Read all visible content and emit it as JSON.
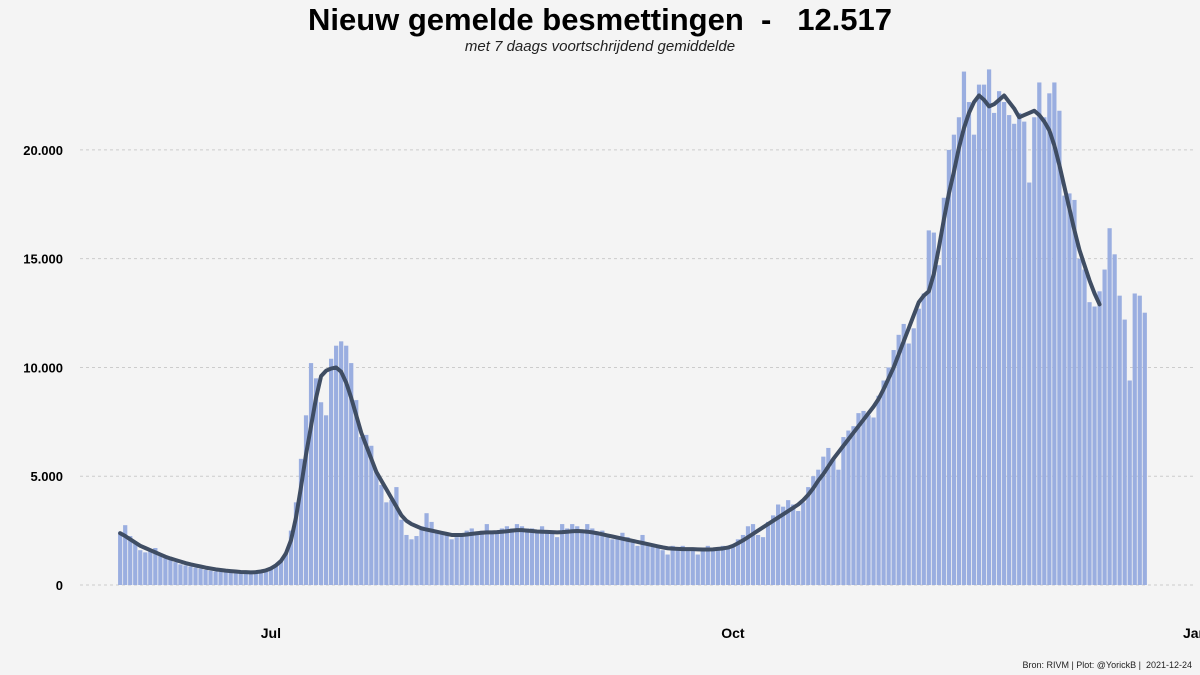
{
  "title": "Nieuw gemelde besmettingen",
  "title_separator": "-",
  "latest_value": "12.517",
  "subtitle": "met 7 daags voortschrijdend gemiddelde",
  "caption": "Bron: RIVM | Plot: @YorickB |  2021-12-24",
  "colors": {
    "background": "#f4f4f4",
    "bars": "#9aaee0",
    "line": "#3f4d63",
    "grid": "#cccccc",
    "text": "#000000"
  },
  "chart_data": {
    "type": "bar",
    "x_start": "2021-06-01",
    "x_end": "2021-12-23",
    "xlim": [
      "2021-05-24",
      "2022-01-01"
    ],
    "ylim": [
      0,
      24500
    ],
    "y_ticks": [
      0,
      5000,
      10000,
      15000,
      20000
    ],
    "y_tick_labels": [
      "0",
      "5.000",
      "10.000",
      "15.000",
      "20.000"
    ],
    "x_ticks": [
      "2021-07-01",
      "2021-10-01",
      "2022-01-01"
    ],
    "x_tick_labels": [
      "Jul",
      "Oct",
      "Jan"
    ],
    "grid": "horizontal dashed",
    "series": [
      {
        "type": "bar",
        "values": [
          2450,
          2750,
          2250,
          1900,
          1600,
          1500,
          1600,
          1700,
          1350,
          1250,
          1150,
          1050,
          950,
          900,
          850,
          800,
          750,
          700,
          650,
          620,
          600,
          580,
          560,
          540,
          520,
          530,
          560,
          600,
          650,
          700,
          800,
          950,
          1150,
          1500,
          2500,
          3800,
          5800,
          7800,
          10200,
          9500,
          8400,
          7800,
          10400,
          11000,
          11200,
          11000,
          10200,
          8500,
          6800,
          6900,
          6400,
          5200,
          4600,
          3800,
          3900,
          4500,
          3000,
          2300,
          2100,
          2250,
          2700,
          3300,
          2900,
          2500,
          2400,
          2300,
          2100,
          2200,
          2300,
          2500,
          2600,
          2400,
          2500,
          2800,
          2400,
          2500,
          2600,
          2700,
          2600,
          2800,
          2700,
          2600,
          2600,
          2500,
          2700,
          2500,
          2400,
          2200,
          2800,
          2600,
          2800,
          2700,
          2500,
          2800,
          2600,
          2300,
          2500,
          2200,
          2100,
          2200,
          2400,
          2200,
          2000,
          1800,
          2300,
          1950,
          1900,
          1700,
          1600,
          1400,
          1800,
          1700,
          1800,
          1700,
          1600,
          1400,
          1700,
          1800,
          1700,
          1600,
          1800,
          1700,
          1800,
          2100,
          2300,
          2700,
          2800,
          2300,
          2200,
          2900,
          3200,
          3700,
          3600,
          3900,
          3700,
          3400,
          3800,
          4500,
          5000,
          5300,
          5900,
          6300,
          5800,
          5300,
          6800,
          7100,
          7300,
          7900,
          8000,
          7800,
          7700,
          8700,
          9400,
          10000,
          10800,
          11500,
          12000,
          11100,
          11800,
          12700,
          13400,
          16300,
          16200,
          14700,
          17800,
          20000,
          20700,
          21500,
          23600,
          22200,
          20700,
          23000,
          23000,
          23700,
          21700,
          22700,
          22200,
          21600,
          21200,
          21700,
          21300,
          18500,
          21500,
          23100,
          21500,
          22600,
          23100,
          21800,
          17900,
          18000,
          17700,
          15000,
          14500,
          13000,
          12800,
          13500,
          14500,
          16400,
          15200,
          13300,
          12200,
          9400,
          13400,
          13300,
          12517
        ]
      },
      {
        "type": "line",
        "name": "7 daags voortschrijdend gemiddelde",
        "values": [
          2380,
          2250,
          2100,
          1950,
          1800,
          1700,
          1600,
          1500,
          1400,
          1300,
          1220,
          1150,
          1080,
          1010,
          950,
          900,
          850,
          800,
          760,
          720,
          690,
          660,
          640,
          620,
          600,
          590,
          580,
          590,
          620,
          670,
          760,
          900,
          1100,
          1450,
          2050,
          3100,
          4500,
          6000,
          7300,
          8600,
          9600,
          9850,
          9950,
          10000,
          9800,
          9300,
          8600,
          7800,
          7000,
          6400,
          5800,
          5200,
          4800,
          4400,
          4000,
          3600,
          3200,
          2950,
          2800,
          2700,
          2600,
          2550,
          2500,
          2450,
          2400,
          2350,
          2300,
          2300,
          2300,
          2320,
          2350,
          2380,
          2400,
          2420,
          2420,
          2430,
          2450,
          2470,
          2500,
          2520,
          2520,
          2500,
          2480,
          2460,
          2450,
          2440,
          2430,
          2420,
          2430,
          2450,
          2470,
          2480,
          2470,
          2450,
          2420,
          2380,
          2330,
          2280,
          2230,
          2180,
          2130,
          2080,
          2030,
          1980,
          1930,
          1880,
          1830,
          1780,
          1730,
          1690,
          1670,
          1660,
          1650,
          1650,
          1650,
          1640,
          1630,
          1630,
          1640,
          1660,
          1680,
          1720,
          1800,
          1920,
          2050,
          2200,
          2350,
          2500,
          2650,
          2800,
          2950,
          3100,
          3250,
          3400,
          3550,
          3700,
          3900,
          4150,
          4450,
          4800,
          5100,
          5450,
          5800,
          6100,
          6400,
          6700,
          7000,
          7300,
          7600,
          7900,
          8200,
          8550,
          9000,
          9500,
          10000,
          10600,
          11200,
          11800,
          12400,
          13000,
          13300,
          13500,
          14300,
          15500,
          16800,
          18000,
          19000,
          20100,
          21000,
          21700,
          22200,
          22500,
          22300,
          22000,
          22100,
          22300,
          22500,
          22200,
          21900,
          21500,
          21600,
          21700,
          21800,
          21600,
          21300,
          20900,
          20200,
          19300,
          18300,
          17300,
          16300,
          15400,
          14700,
          14000,
          13400,
          12900
        ]
      }
    ]
  }
}
